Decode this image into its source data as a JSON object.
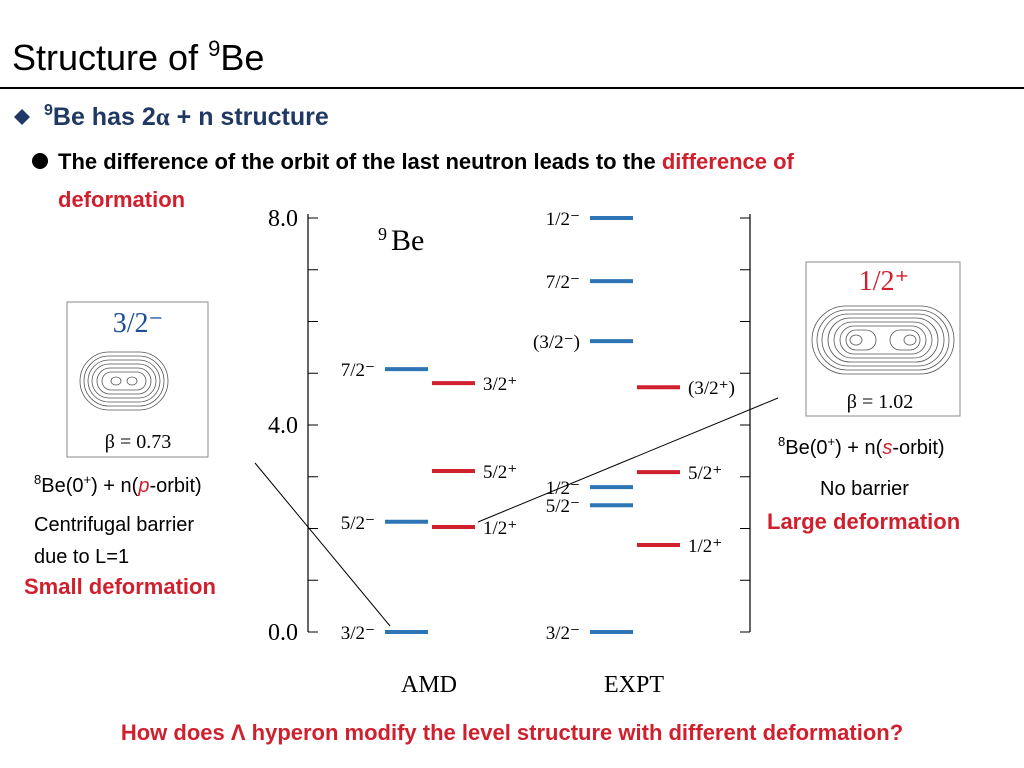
{
  "title": {
    "main": "Structure of ",
    "sup": "9",
    "rest": "Be"
  },
  "bullet1": {
    "sup": "9",
    "text_a": "Be has 2",
    "alpha": "α",
    "text_b": " + n structure"
  },
  "bullet2": {
    "text": "The difference of the orbit of the last neutron leads to the ",
    "highlight_line1": "difference of",
    "highlight_line2": "deformation"
  },
  "left_panel": {
    "state": "3/2⁻",
    "beta": "β = 0.73",
    "config": [
      "8",
      "Be(0",
      "+",
      ") + n(",
      "p",
      "-orbit)"
    ],
    "notes": [
      "Centrifugal barrier",
      "due to L=1"
    ],
    "conclusion": "Small deformation"
  },
  "right_panel": {
    "state": "1/2⁺",
    "beta": "β = 1.02",
    "config": [
      "8",
      "Be(0",
      "+",
      ") + n(",
      "s",
      "-orbit)"
    ],
    "note": "No barrier",
    "conclusion": "Large deformation"
  },
  "question": "How does Λ hyperon modify the level structure with different deformation?",
  "chart_data": {
    "type": "level-scheme",
    "title": [
      "9",
      "Be"
    ],
    "ylim": [
      0,
      8
    ],
    "yticks": [
      {
        "value": 0,
        "label": "0.0"
      },
      {
        "value": 4,
        "label": "4.0"
      },
      {
        "value": 8,
        "label": "8.0"
      }
    ],
    "yminorticks": [
      1,
      2,
      3,
      5,
      6,
      7
    ],
    "columns": [
      {
        "name": "AMD",
        "levels": [
          {
            "label": "3/2⁻",
            "energy": 0,
            "color": "#2e75b6"
          },
          {
            "label": "5/2⁻",
            "energy": 2.13,
            "color": "#2e75b6"
          },
          {
            "label": "7/2⁻",
            "energy": 5.08,
            "color": "#2e75b6"
          },
          {
            "label": "1/2⁺",
            "energy": 2.03,
            "color": "#d0202e"
          },
          {
            "label": "5/2⁺",
            "energy": 3.11,
            "color": "#d0202e"
          },
          {
            "label": "3/2⁺",
            "energy": 4.81,
            "color": "#d0202e"
          }
        ]
      },
      {
        "name": "EXPT",
        "levels": [
          {
            "label": "3/2⁻",
            "energy": 0,
            "color": "#2e75b6"
          },
          {
            "label": "5/2⁻",
            "energy": 2.45,
            "color": "#2e75b6"
          },
          {
            "label": "1/2⁻",
            "energy": 2.8,
            "color": "#2e75b6"
          },
          {
            "label": "(3/2⁻)",
            "energy": 5.62,
            "color": "#2e75b6"
          },
          {
            "label": "7/2⁻",
            "energy": 6.78,
            "color": "#2e75b6"
          },
          {
            "label": "1/2⁻",
            "energy": 8,
            "color": "#2e75b6"
          },
          {
            "label": "1/2⁺",
            "energy": 1.68,
            "color": "#d0202e"
          },
          {
            "label": "5/2⁺",
            "energy": 3.09,
            "color": "#d0202e"
          },
          {
            "label": "(3/2⁺)",
            "energy": 4.73,
            "color": "#d0202e"
          }
        ]
      }
    ]
  }
}
